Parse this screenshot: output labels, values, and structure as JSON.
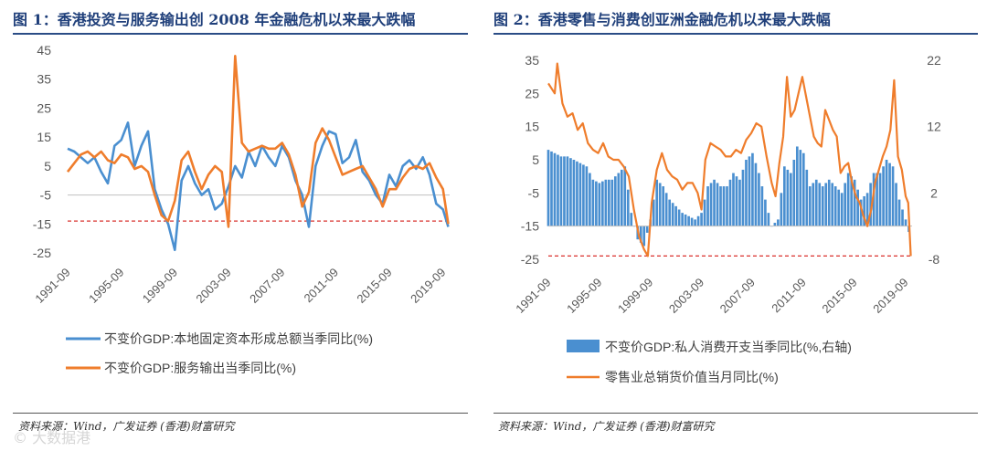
{
  "colors": {
    "blue": "#4a8fd0",
    "orange": "#ef7d2c",
    "ref": "#d9302c",
    "title": "#1f3f7a",
    "axis": "#bfbfbf"
  },
  "left": {
    "title": "图 1：香港投资与服务输出创 2008 年金融危机以来最大跌幅",
    "source": "资料来源：Wind，广发证券 (香港)财富研究"
  },
  "right": {
    "title": "图 2：香港零售与消费创亚洲金融危机以来最大跌幅",
    "source": "资料来源：Wind，广发证券 (香港)财富研究"
  },
  "watermark": "© 大数据港",
  "chart_data": [
    {
      "type": "line",
      "title": "图 1：香港投资与服务输出创 2008 年金融危机以来最大跌幅",
      "y_ticks": [
        45,
        35,
        25,
        15,
        5,
        -5,
        -15,
        -25
      ],
      "ylim": [
        -25,
        45
      ],
      "x_ticks": [
        "1991-09",
        "1995-09",
        "1999-09",
        "2003-09",
        "2007-09",
        "2011-09",
        "2015-09",
        "2019-09"
      ],
      "x_range": [
        1991.5,
        2020.0
      ],
      "reference_line": -14,
      "series": [
        {
          "name": "不变价GDP:本地固定资本形成总额当季同比(%)",
          "color": "blue",
          "points": [
            [
              1991.5,
              11
            ],
            [
              1992,
              10
            ],
            [
              1993,
              6
            ],
            [
              1993.5,
              8
            ],
            [
              1994,
              3
            ],
            [
              1994.5,
              -1
            ],
            [
              1995,
              12
            ],
            [
              1995.5,
              14
            ],
            [
              1996,
              20
            ],
            [
              1996.5,
              5
            ],
            [
              1997,
              12
            ],
            [
              1997.5,
              17
            ],
            [
              1998,
              -3
            ],
            [
              1998.5,
              -10
            ],
            [
              1999,
              -15
            ],
            [
              1999.5,
              -24
            ],
            [
              2000,
              0
            ],
            [
              2000.5,
              5
            ],
            [
              2001,
              -1
            ],
            [
              2001.5,
              -5
            ],
            [
              2002,
              -3
            ],
            [
              2002.5,
              -10
            ],
            [
              2003,
              -8
            ],
            [
              2003.5,
              -2
            ],
            [
              2004,
              5
            ],
            [
              2004.5,
              1
            ],
            [
              2005,
              10
            ],
            [
              2005.5,
              5
            ],
            [
              2006,
              12
            ],
            [
              2006.5,
              8
            ],
            [
              2007,
              5
            ],
            [
              2007.5,
              12
            ],
            [
              2008,
              8
            ],
            [
              2008.5,
              0
            ],
            [
              2009,
              -5
            ],
            [
              2009.5,
              -16
            ],
            [
              2010,
              5
            ],
            [
              2010.5,
              12
            ],
            [
              2011,
              17
            ],
            [
              2011.5,
              16
            ],
            [
              2012,
              6
            ],
            [
              2012.5,
              8
            ],
            [
              2013,
              14
            ],
            [
              2013.5,
              3
            ],
            [
              2014,
              0
            ],
            [
              2014.5,
              -5
            ],
            [
              2015,
              -8
            ],
            [
              2015.5,
              2
            ],
            [
              2016,
              -2
            ],
            [
              2016.5,
              5
            ],
            [
              2017,
              7
            ],
            [
              2017.5,
              4
            ],
            [
              2018,
              8
            ],
            [
              2018.5,
              2
            ],
            [
              2019,
              -8
            ],
            [
              2019.5,
              -10
            ],
            [
              2019.9,
              -16
            ]
          ]
        },
        {
          "name": "不变价GDP:服务输出当季同比(%)",
          "color": "orange",
          "points": [
            [
              1991.5,
              3
            ],
            [
              1992,
              6
            ],
            [
              1992.5,
              9
            ],
            [
              1993,
              10
            ],
            [
              1993.5,
              8
            ],
            [
              1994,
              10
            ],
            [
              1994.5,
              7
            ],
            [
              1995,
              6
            ],
            [
              1995.5,
              9
            ],
            [
              1996,
              8
            ],
            [
              1996.5,
              4
            ],
            [
              1997,
              5
            ],
            [
              1997.5,
              3
            ],
            [
              1998,
              -5
            ],
            [
              1998.5,
              -12
            ],
            [
              1999,
              -14
            ],
            [
              1999.5,
              -7
            ],
            [
              2000,
              7
            ],
            [
              2000.5,
              10
            ],
            [
              2001,
              3
            ],
            [
              2001.5,
              -3
            ],
            [
              2002,
              2
            ],
            [
              2002.5,
              5
            ],
            [
              2003,
              3
            ],
            [
              2003.5,
              -16
            ],
            [
              2004,
              43
            ],
            [
              2004.5,
              13
            ],
            [
              2005,
              10
            ],
            [
              2005.5,
              11
            ],
            [
              2006,
              12
            ],
            [
              2006.5,
              11
            ],
            [
              2007,
              11
            ],
            [
              2007.5,
              13
            ],
            [
              2008,
              9
            ],
            [
              2008.5,
              2
            ],
            [
              2009,
              -9
            ],
            [
              2009.5,
              -4
            ],
            [
              2010,
              13
            ],
            [
              2010.5,
              18
            ],
            [
              2011,
              14
            ],
            [
              2011.5,
              8
            ],
            [
              2012,
              2
            ],
            [
              2012.5,
              3
            ],
            [
              2013,
              4
            ],
            [
              2013.5,
              5
            ],
            [
              2014,
              1
            ],
            [
              2014.5,
              -3
            ],
            [
              2015,
              -9
            ],
            [
              2015.5,
              -3
            ],
            [
              2016,
              -3
            ],
            [
              2016.5,
              1
            ],
            [
              2017,
              4
            ],
            [
              2017.5,
              5
            ],
            [
              2018,
              4
            ],
            [
              2018.5,
              6
            ],
            [
              2019,
              1
            ],
            [
              2019.5,
              -3
            ],
            [
              2019.9,
              -15
            ]
          ]
        }
      ],
      "legend": [
        "不变价GDP:本地固定资本形成总额当季同比(%)",
        "不变价GDP:服务输出当季同比(%)"
      ]
    },
    {
      "type": "bar+line",
      "title": "图 2：香港零售与消费创亚洲金融危机以来最大跌幅",
      "y_ticks": [
        35,
        25,
        15,
        5,
        -5,
        -15,
        -25
      ],
      "ylim": [
        -25,
        35
      ],
      "y2_ticks": [
        22,
        12,
        2,
        -8
      ],
      "y2lim": [
        -8,
        22
      ],
      "x_ticks": [
        "1991-09",
        "1995-09",
        "1999-09",
        "2003-09",
        "2007-09",
        "2011-09",
        "2015-09",
        "2019-09"
      ],
      "x_range": [
        1991.5,
        2020.0
      ],
      "reference_line": -24,
      "series": [
        {
          "name": "不变价GDP:私人消费开支当季同比(%,右轴)",
          "color": "blue",
          "kind": "bar",
          "axis": "right",
          "points": [
            [
              1991.5,
              8.5
            ],
            [
              1992,
              8
            ],
            [
              1992.5,
              7.5
            ],
            [
              1993,
              7.5
            ],
            [
              1993.5,
              7
            ],
            [
              1994,
              6.5
            ],
            [
              1994.5,
              6
            ],
            [
              1995,
              4
            ],
            [
              1995.5,
              3.5
            ],
            [
              1996,
              4
            ],
            [
              1996.5,
              4
            ],
            [
              1997,
              5
            ],
            [
              1997.5,
              6
            ],
            [
              1998,
              -1
            ],
            [
              1998.5,
              -5
            ],
            [
              1999,
              -6
            ],
            [
              1999.5,
              -2
            ],
            [
              2000,
              4
            ],
            [
              2000.5,
              3
            ],
            [
              2001,
              1
            ],
            [
              2001.5,
              0
            ],
            [
              2002,
              -1
            ],
            [
              2002.5,
              -1.5
            ],
            [
              2003,
              -2
            ],
            [
              2003.5,
              -1
            ],
            [
              2004,
              3
            ],
            [
              2004.5,
              4
            ],
            [
              2005,
              3
            ],
            [
              2005.5,
              3
            ],
            [
              2006,
              5
            ],
            [
              2006.5,
              4
            ],
            [
              2007,
              7
            ],
            [
              2007.5,
              8
            ],
            [
              2008,
              5
            ],
            [
              2008.5,
              1
            ],
            [
              2009,
              -3
            ],
            [
              2009.5,
              -2
            ],
            [
              2010,
              6
            ],
            [
              2010.5,
              5
            ],
            [
              2011,
              9
            ],
            [
              2011.5,
              8
            ],
            [
              2012,
              3
            ],
            [
              2012.5,
              4
            ],
            [
              2013,
              3
            ],
            [
              2013.5,
              4
            ],
            [
              2014,
              3
            ],
            [
              2014.5,
              2
            ],
            [
              2015,
              5
            ],
            [
              2015.5,
              4
            ],
            [
              2016,
              1
            ],
            [
              2016.5,
              2
            ],
            [
              2017,
              5
            ],
            [
              2017.5,
              5
            ],
            [
              2018,
              7
            ],
            [
              2018.5,
              6
            ],
            [
              2019,
              1
            ],
            [
              2019.5,
              -2
            ],
            [
              2019.9,
              -5
            ]
          ]
        },
        {
          "name": "零售业总销货价值当月同比(%)",
          "color": "orange",
          "kind": "line",
          "axis": "left",
          "points": [
            [
              1991.5,
              28
            ],
            [
              1992,
              25
            ],
            [
              1992.2,
              34
            ],
            [
              1992.6,
              22
            ],
            [
              1993,
              18
            ],
            [
              1993.4,
              19
            ],
            [
              1993.8,
              14
            ],
            [
              1994.2,
              16
            ],
            [
              1994.6,
              10
            ],
            [
              1995,
              8
            ],
            [
              1995.4,
              7
            ],
            [
              1995.8,
              10
            ],
            [
              1996.2,
              6
            ],
            [
              1996.6,
              5
            ],
            [
              1997,
              5
            ],
            [
              1997.4,
              3
            ],
            [
              1997.8,
              0
            ],
            [
              1998.2,
              -10
            ],
            [
              1998.6,
              -18
            ],
            [
              1999,
              -22
            ],
            [
              1999.3,
              -24
            ],
            [
              1999.6,
              -8
            ],
            [
              2000,
              2
            ],
            [
              2000.4,
              7
            ],
            [
              2000.8,
              2
            ],
            [
              2001.2,
              0
            ],
            [
              2001.6,
              -1
            ],
            [
              2002,
              -4
            ],
            [
              2002.4,
              -2
            ],
            [
              2002.8,
              -2
            ],
            [
              2003.2,
              -5
            ],
            [
              2003.5,
              -10
            ],
            [
              2003.8,
              5
            ],
            [
              2004.2,
              10
            ],
            [
              2004.6,
              9
            ],
            [
              2005,
              8
            ],
            [
              2005.4,
              6
            ],
            [
              2005.8,
              6
            ],
            [
              2006.2,
              8
            ],
            [
              2006.6,
              7
            ],
            [
              2007,
              11
            ],
            [
              2007.4,
              13
            ],
            [
              2007.8,
              16
            ],
            [
              2008.2,
              15
            ],
            [
              2008.6,
              6
            ],
            [
              2009,
              -2
            ],
            [
              2009.3,
              -6
            ],
            [
              2009.6,
              4
            ],
            [
              2009.9,
              12
            ],
            [
              2010.2,
              30
            ],
            [
              2010.5,
              18
            ],
            [
              2010.8,
              20
            ],
            [
              2011.1,
              25
            ],
            [
              2011.4,
              30
            ],
            [
              2011.7,
              24
            ],
            [
              2012,
              18
            ],
            [
              2012.3,
              12
            ],
            [
              2012.6,
              10
            ],
            [
              2012.9,
              9
            ],
            [
              2013.2,
              20
            ],
            [
              2013.5,
              17
            ],
            [
              2013.8,
              14
            ],
            [
              2014.1,
              12
            ],
            [
              2014.4,
              1
            ],
            [
              2014.7,
              3
            ],
            [
              2015,
              4
            ],
            [
              2015.3,
              -2
            ],
            [
              2015.6,
              -6
            ],
            [
              2015.9,
              -8
            ],
            [
              2016.2,
              -12
            ],
            [
              2016.5,
              -15
            ],
            [
              2016.8,
              -10
            ],
            [
              2017.1,
              -2
            ],
            [
              2017.4,
              2
            ],
            [
              2017.7,
              6
            ],
            [
              2018,
              9
            ],
            [
              2018.3,
              14
            ],
            [
              2018.6,
              29
            ],
            [
              2018.9,
              6
            ],
            [
              2019.2,
              2
            ],
            [
              2019.5,
              -6
            ],
            [
              2019.7,
              -8
            ],
            [
              2019.9,
              -24
            ]
          ]
        }
      ],
      "legend": [
        "不变价GDP:私人消费开支当季同比(%,右轴)",
        "零售业总销货价值当月同比(%)"
      ]
    }
  ]
}
